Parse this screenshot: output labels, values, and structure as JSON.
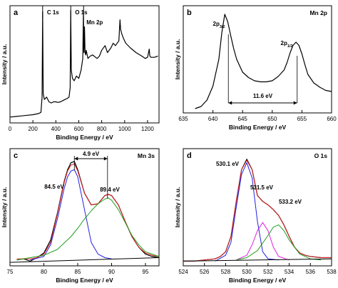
{
  "chart_data": [
    {
      "type": "line",
      "panel_label": "a",
      "xlabel": "Binding Energy / eV",
      "ylabel": "Intensity / a.u.",
      "xlim": [
        0,
        1300
      ],
      "ylim": [
        0,
        100
      ],
      "xticks": [
        0,
        200,
        400,
        600,
        800,
        1000,
        1200
      ],
      "show_yticks": false,
      "series": [
        {
          "color": "#000000",
          "x": [
            0,
            50,
            100,
            150,
            200,
            250,
            270,
            280,
            285,
            290,
            300,
            320,
            340,
            360,
            380,
            400,
            420,
            440,
            460,
            480,
            500,
            515,
            525,
            530,
            535,
            545,
            560,
            580,
            600,
            620,
            635,
            640,
            642,
            645,
            650,
            655,
            660,
            665,
            680,
            700,
            720,
            760,
            780,
            800,
            830,
            850,
            880,
            900,
            920,
            950,
            960,
            965,
            975,
            990,
            1010,
            1050,
            1100,
            1150,
            1180,
            1200,
            1215,
            1220,
            1230,
            1260,
            1290
          ],
          "y": [
            5,
            5.5,
            6,
            6.5,
            7,
            8,
            9,
            22,
            95,
            25,
            20,
            22,
            18,
            17,
            18,
            18,
            17.5,
            18,
            19,
            20,
            21,
            22,
            30,
            96,
            45,
            38,
            36,
            40,
            38,
            45,
            55,
            92,
            70,
            60,
            82,
            60,
            58,
            62,
            55,
            57,
            58,
            55,
            57,
            62,
            66,
            60,
            64,
            68,
            66,
            70,
            88,
            80,
            76,
            72,
            68,
            64,
            60,
            57,
            55,
            56,
            63,
            57,
            56,
            56,
            57
          ]
        }
      ],
      "annotations": [
        {
          "text": "C 1s",
          "x": 285
        },
        {
          "text": "O 1s",
          "x": 530
        },
        {
          "text": "Mn 2p",
          "x": 642
        }
      ]
    },
    {
      "type": "line",
      "panel_label": "b",
      "title": "Mn 2p",
      "xlabel": "Binding Energy / eV",
      "ylabel": "Intensity / a.u.",
      "xlim": [
        635,
        660
      ],
      "ylim": [
        0,
        100
      ],
      "xticks": [
        635,
        640,
        645,
        650,
        655,
        660
      ],
      "show_yticks": false,
      "series": [
        {
          "color": "#000000",
          "x": [
            637,
            638,
            639,
            640,
            641,
            641.5,
            642,
            642.5,
            643,
            643.5,
            644,
            645,
            646,
            647,
            648,
            649,
            650,
            651,
            652,
            652.5,
            653,
            653.5,
            654,
            654.5,
            655,
            655.5,
            656,
            657,
            658,
            659,
            660
          ],
          "y": [
            4,
            6,
            12,
            25,
            50,
            75,
            92,
            85,
            72,
            60,
            50,
            38,
            33,
            30,
            29,
            29,
            30,
            34,
            40,
            47,
            56,
            63,
            66,
            63,
            55,
            45,
            36,
            28,
            24,
            21,
            20
          ]
        }
      ],
      "annotations": [
        {
          "text": "2p",
          "sub": "3/2",
          "x": 642.5
        },
        {
          "text": "2p",
          "sub": "1/2",
          "x": 654.2
        },
        {
          "text": "11.6 eV",
          "x1": 642.6,
          "x2": 654.2
        }
      ]
    },
    {
      "type": "line",
      "panel_label": "c",
      "title": "Mn 3s",
      "xlabel": "Binding Energy / eV",
      "ylabel": "Intensity / a.u.",
      "xlim": [
        75,
        97
      ],
      "ylim": [
        0,
        100
      ],
      "xticks": [
        75,
        80,
        85,
        90,
        95
      ],
      "show_yticks": false,
      "series": [
        {
          "color": "#000000",
          "x": [
            76,
            77,
            78,
            79,
            80,
            81,
            82,
            83,
            83.5,
            84,
            84.5,
            85,
            86,
            87,
            88,
            89,
            89.5,
            90,
            91,
            92,
            93,
            94,
            95,
            96,
            97
          ],
          "y": [
            5,
            6,
            4,
            7,
            11,
            22,
            45,
            72,
            82,
            88,
            89,
            82,
            62,
            52,
            53,
            60,
            61,
            60,
            52,
            38,
            25,
            16,
            10,
            8,
            7
          ]
        },
        {
          "color": "#e02020",
          "x": [
            76,
            77,
            78,
            79,
            80,
            81,
            82,
            83,
            83.5,
            84,
            84.5,
            85,
            86,
            87,
            88,
            89,
            89.5,
            90,
            91,
            92,
            93,
            94,
            95,
            96,
            97
          ],
          "y": [
            6,
            6,
            6,
            7,
            10,
            20,
            44,
            71,
            81,
            86,
            87,
            81,
            62,
            52,
            53,
            60,
            61,
            60,
            52,
            38,
            25,
            16,
            11,
            9,
            8
          ]
        },
        {
          "color": "#2020e0",
          "x": [
            78,
            80,
            81,
            82,
            83,
            83.5,
            84,
            84.5,
            85,
            86,
            87,
            88,
            89,
            90
          ],
          "y": [
            5,
            8,
            18,
            40,
            66,
            76,
            81,
            82,
            76,
            48,
            20,
            10,
            7,
            6
          ]
        },
        {
          "color": "#20a020",
          "x": [
            76,
            80,
            82,
            84,
            85,
            86,
            87,
            88,
            89,
            89.5,
            90,
            91,
            92,
            93,
            94,
            95,
            97
          ],
          "y": [
            5,
            9,
            14,
            25,
            32,
            40,
            47,
            53,
            57,
            58,
            56,
            48,
            37,
            26,
            18,
            12,
            8
          ]
        },
        {
          "color": "#000000",
          "x": [
            75,
            97
          ],
          "y": [
            3,
            7
          ]
        }
      ],
      "annotations": [
        {
          "text": "84.5 eV",
          "x": 84.5
        },
        {
          "text": "89.4 eV",
          "x": 89.4
        },
        {
          "text": "4.9 eV",
          "x1": 84.5,
          "x2": 89.4
        }
      ]
    },
    {
      "type": "line",
      "panel_label": "d",
      "title": "O 1s",
      "xlabel": "Binding Energy / eV",
      "ylabel": "Intensity / a.u.",
      "xlim": [
        524,
        538
      ],
      "ylim": [
        0,
        100
      ],
      "xticks": [
        524,
        526,
        528,
        530,
        532,
        534,
        536,
        538
      ],
      "show_yticks": false,
      "series": [
        {
          "color": "#000000",
          "x": [
            524,
            525,
            526,
            527,
            527.5,
            528,
            528.5,
            529,
            529.5,
            530,
            530.5,
            531,
            531.5,
            532,
            532.5,
            533,
            533.5,
            534,
            534.5,
            535,
            535.5,
            536,
            537,
            538
          ],
          "y": [
            4,
            4,
            5,
            6,
            8,
            12,
            25,
            55,
            82,
            91,
            82,
            60,
            55,
            52,
            48,
            43,
            35,
            25,
            16,
            11,
            9,
            8,
            7,
            7
          ]
        },
        {
          "color": "#e02020",
          "x": [
            524,
            525,
            526,
            527,
            527.5,
            528,
            528.5,
            529,
            529.5,
            530,
            530.5,
            531,
            531.5,
            532,
            532.5,
            533,
            533.5,
            534,
            534.5,
            535,
            535.5,
            536,
            537,
            538
          ],
          "y": [
            4,
            4,
            5,
            6,
            8,
            12,
            25,
            55,
            82,
            90,
            82,
            60,
            55,
            52,
            48,
            43,
            35,
            25,
            16,
            11,
            9,
            8,
            7,
            7
          ]
        },
        {
          "color": "#2020e0",
          "x": [
            527,
            528,
            528.5,
            529,
            529.5,
            530,
            530.5,
            531,
            531.5,
            532,
            533
          ],
          "y": [
            4,
            9,
            20,
            50,
            78,
            88,
            75,
            38,
            12,
            6,
            5
          ]
        },
        {
          "color": "#e020e0",
          "x": [
            529,
            530,
            530.5,
            531,
            531.5,
            532,
            532.5,
            533,
            534
          ],
          "y": [
            5,
            9,
            18,
            30,
            37,
            30,
            16,
            8,
            5
          ]
        },
        {
          "color": "#20a020",
          "x": [
            529,
            530,
            531,
            532,
            532.5,
            533,
            533.5,
            534,
            535,
            536,
            537
          ],
          "y": [
            5,
            7,
            13,
            26,
            33,
            35,
            30,
            22,
            10,
            6,
            5
          ]
        },
        {
          "color": "#000000",
          "x": [
            524,
            538
          ],
          "y": [
            4,
            6
          ]
        }
      ],
      "annotations": [
        {
          "text": "530.1 eV",
          "x": 530.1
        },
        {
          "text": "531.5 eV",
          "x": 531.5
        },
        {
          "text": "533.2 eV",
          "x": 533.2
        }
      ]
    }
  ]
}
